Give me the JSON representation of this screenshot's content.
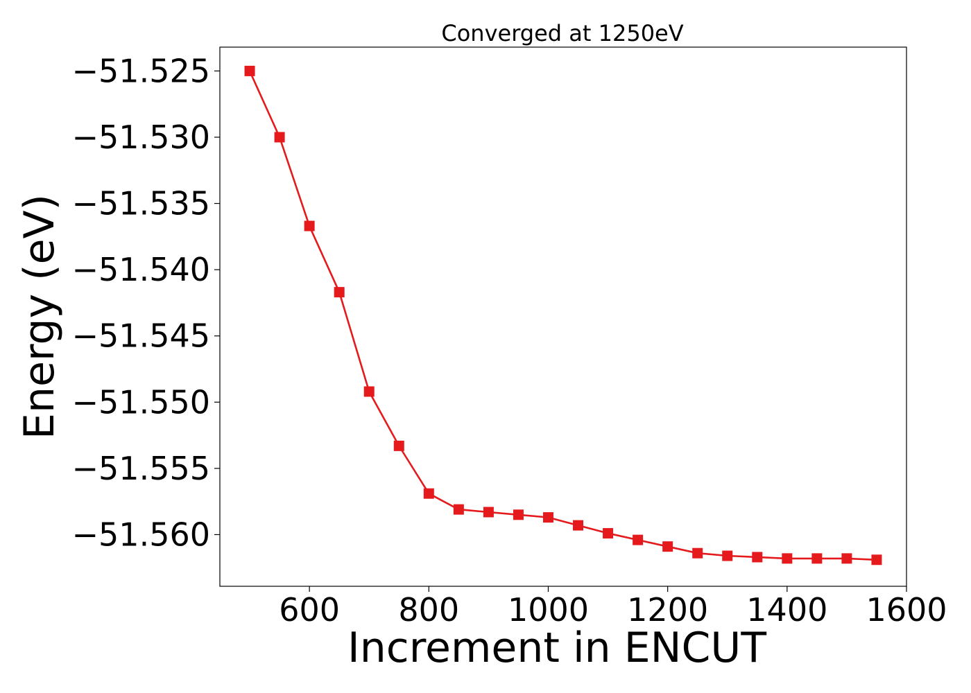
{
  "chart_data": {
    "type": "line",
    "title": "Converged at 1250eV",
    "xlabel": "Increment in ENCUT",
    "ylabel": "Energy (eV)",
    "xlim": [
      450,
      1600
    ],
    "ylim": [
      -51.5639,
      -51.5232
    ],
    "xticks": [
      600,
      800,
      1000,
      1200,
      1400,
      1600
    ],
    "yticks": [
      -51.525,
      -51.53,
      -51.535,
      -51.54,
      -51.545,
      -51.55,
      -51.555,
      -51.56
    ],
    "ytick_labels": [
      "−51.525",
      "−51.530",
      "−51.535",
      "−51.540",
      "−51.545",
      "−51.550",
      "−51.555",
      "−51.560"
    ],
    "grid": false,
    "series": [
      {
        "color": "#e41a1c",
        "marker": "square",
        "x": [
          500,
          550,
          600,
          650,
          700,
          750,
          800,
          850,
          900,
          950,
          1000,
          1050,
          1100,
          1150,
          1200,
          1250,
          1300,
          1350,
          1400,
          1450,
          1500,
          1550
        ],
        "values": [
          -51.525,
          -51.53,
          -51.5367,
          -51.5417,
          -51.5492,
          -51.5533,
          -51.5569,
          -51.5581,
          -51.5583,
          -51.5585,
          -51.5587,
          -51.5593,
          -51.5599,
          -51.5604,
          -51.5609,
          -51.5614,
          -51.5616,
          -51.5617,
          -51.5618,
          -51.5618,
          -51.5618,
          -51.5619
        ]
      }
    ]
  }
}
